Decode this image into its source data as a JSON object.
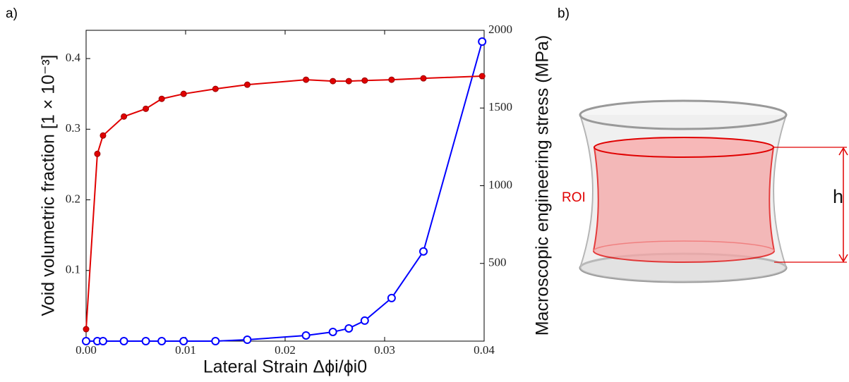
{
  "panels": [
    "a)",
    "b)"
  ],
  "diagram": {
    "roi_label": "ROI",
    "height_label": "h"
  },
  "chart_data": {
    "type": "line",
    "x_label": "Lateral Strain Δϕi/ϕi0",
    "y_label": "Void volumetric fraction [1 × 10⁻³]",
    "y2_label": "Macroscopic engineering stress (MPa)",
    "x": [
      0,
      0.00113,
      0.0017,
      0.0038,
      0.006,
      0.0076,
      0.0098,
      0.013,
      0.0162,
      0.0221,
      0.0248,
      0.0264,
      0.028,
      0.0307,
      0.0339,
      0.0398
    ],
    "series": [
      {
        "name": "Void volumetric fraction",
        "color": "#0000ff",
        "marker": "open",
        "values": [
          0,
          0,
          0,
          0,
          0,
          0,
          0,
          0,
          0.002,
          0.008,
          0.013,
          0.018,
          0.029,
          0.061,
          0.127,
          0.424
        ]
      },
      {
        "name": "Macroscopic engineering stress",
        "color": "#e00000",
        "marker": "filled",
        "axis": "y2",
        "values": [
          77,
          1205,
          1323,
          1445,
          1495,
          1559,
          1591,
          1623,
          1650,
          1682,
          1673,
          1673,
          1677,
          1682,
          1691,
          1705
        ]
      }
    ],
    "xlim": [
      0,
      0.04
    ],
    "xticks": [
      {
        "value": 0,
        "label": "0.00"
      },
      0.01,
      0.02,
      0.03,
      0.04
    ],
    "ylim": [
      0,
      0.44
    ],
    "yticks": [
      0.1,
      0.2,
      0.3,
      0.4
    ],
    "y2lim": [
      0,
      2000
    ],
    "y2ticks": [
      500,
      1000,
      1500,
      2000
    ]
  }
}
